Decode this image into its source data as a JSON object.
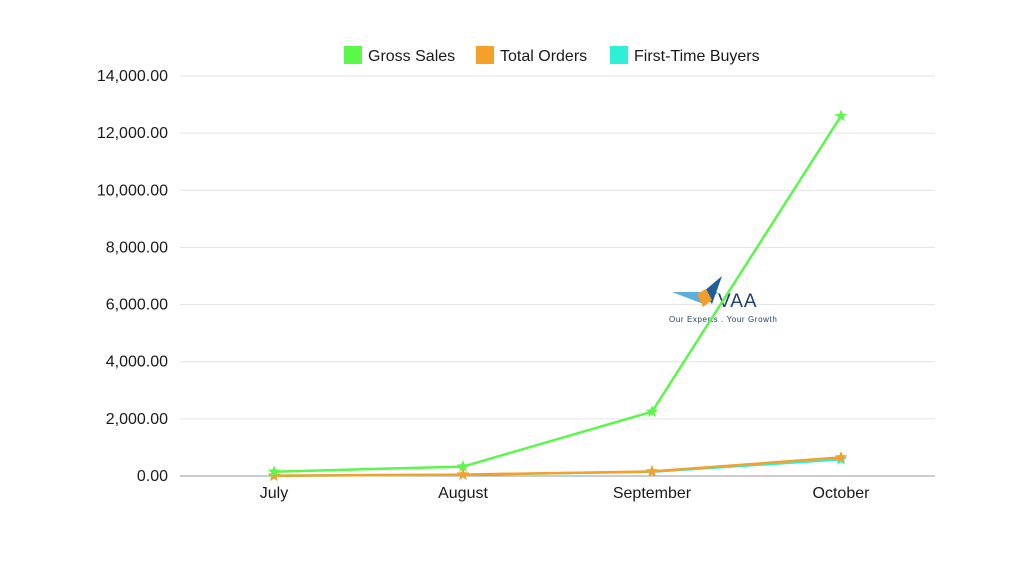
{
  "chart_data": {
    "type": "line",
    "categories": [
      "July",
      "August",
      "September",
      "October"
    ],
    "series": [
      {
        "name": "Gross Sales",
        "color": "#5bf74a",
        "values": [
          150,
          330,
          2250,
          12600
        ]
      },
      {
        "name": "Total Orders",
        "color": "#f5a02a",
        "values": [
          10,
          50,
          160,
          650
        ]
      },
      {
        "name": "First-Time Buyers",
        "color": "#2ff0d6",
        "values": [
          8,
          45,
          150,
          580
        ]
      }
    ],
    "y_ticks": [
      "0.00",
      "2,000.00",
      "4,000.00",
      "6,000.00",
      "8,000.00",
      "10,000.00",
      "12,000.00",
      "14,000.00"
    ],
    "ylim": [
      0,
      14000
    ],
    "title": "",
    "xlabel": "",
    "ylabel": "",
    "grid": true,
    "legend_position": "top-center",
    "marker": "star"
  },
  "logo": {
    "text": "VAA",
    "tagline": "Our Experts . Your Growth"
  }
}
